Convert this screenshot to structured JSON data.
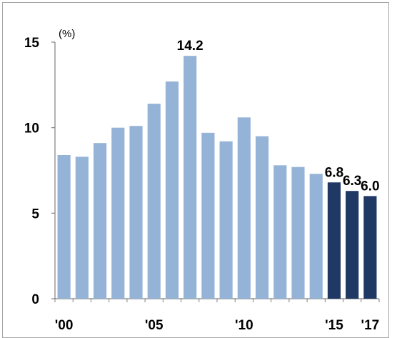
{
  "chart_data": {
    "type": "bar",
    "title": "",
    "xlabel": "",
    "ylabel": "(%)",
    "ylim": [
      0,
      15
    ],
    "yticks": [
      "0",
      "5",
      "10",
      "15"
    ],
    "grid": false,
    "legend": "none",
    "categories": [
      "2000",
      "2001",
      "2002",
      "2003",
      "2004",
      "2005",
      "2006",
      "2007",
      "2008",
      "2009",
      "2010",
      "2011",
      "2012",
      "2013",
      "2014",
      "2015",
      "2016",
      "2017"
    ],
    "category_tick_labels": [
      "'00",
      "",
      "",
      "",
      "",
      "'05",
      "",
      "",
      "",
      "",
      "'10",
      "",
      "",
      "",
      "",
      "'15",
      "",
      "'17"
    ],
    "values": [
      8.4,
      8.3,
      9.1,
      10.0,
      10.1,
      11.4,
      12.7,
      14.2,
      9.7,
      9.2,
      10.6,
      9.5,
      7.8,
      7.7,
      7.3,
      6.8,
      6.3,
      6.0
    ],
    "value_labels": [
      "",
      "",
      "",
      "",
      "",
      "",
      "",
      "14.2",
      "",
      "",
      "",
      "",
      "",
      "",
      "",
      "6.8",
      "6.3",
      "6.0"
    ],
    "colors": {
      "historical": "#95b3d7",
      "forecast": "#1f3864"
    },
    "forecast_start_index": 15
  }
}
